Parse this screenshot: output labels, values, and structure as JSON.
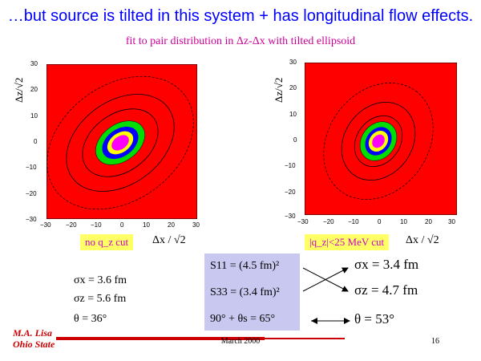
{
  "title": "…but source is tilted in this system +  has longitudinal flow effects.",
  "subtitle": "fit to pair distribution in Δz-Δx with tilted ellipsoid",
  "plot_left": {
    "y_label": "Δz/√2",
    "x_label": "Δx / √2",
    "y_ticks": [
      "30",
      "20",
      "10",
      "0",
      "−10",
      "−20",
      "−30"
    ],
    "x_ticks": [
      "−30",
      "−20",
      "−10",
      "0",
      "10",
      "20",
      "30"
    ],
    "cut_label": "no q_z cut"
  },
  "plot_right": {
    "y_label": "Δz/√2",
    "x_label": "Δx / √2",
    "y_ticks": [
      "30",
      "20",
      "10",
      "0",
      "−10",
      "−20",
      "−30"
    ],
    "x_ticks": [
      "−30",
      "−20",
      "−10",
      "0",
      "10",
      "20",
      "30"
    ],
    "cut_label": "|q_z|<25 MeV cut"
  },
  "left_params": {
    "sigma_x": "σx = 3.6 fm",
    "sigma_z": "σz = 5.6 fm",
    "theta": "θ = 36°"
  },
  "fit_box": {
    "s11": "S11 = (4.5 fm)²",
    "s33": "S33 = (3.4 fm)²",
    "angle": "90° + θs = 65°"
  },
  "right_params": {
    "sigma_x": "σx = 3.4 fm",
    "sigma_z": "σz = 4.7 fm",
    "theta": "θ = 53°"
  },
  "footer": {
    "author_line1": "M.A. Lisa",
    "author_line2": "Ohio State",
    "date": "March 2000",
    "page": "16"
  },
  "colors": {
    "title": "#0000ff",
    "subtitle": "#cc0099",
    "plot_background": "#ff0000",
    "contour_green": "#00dd00",
    "contour_blue": "#0000ff",
    "contour_yellow": "#ffff00",
    "contour_magenta": "#ff00ff",
    "fit_box": "#c8c8f0",
    "cut_box": "#ffff66"
  }
}
